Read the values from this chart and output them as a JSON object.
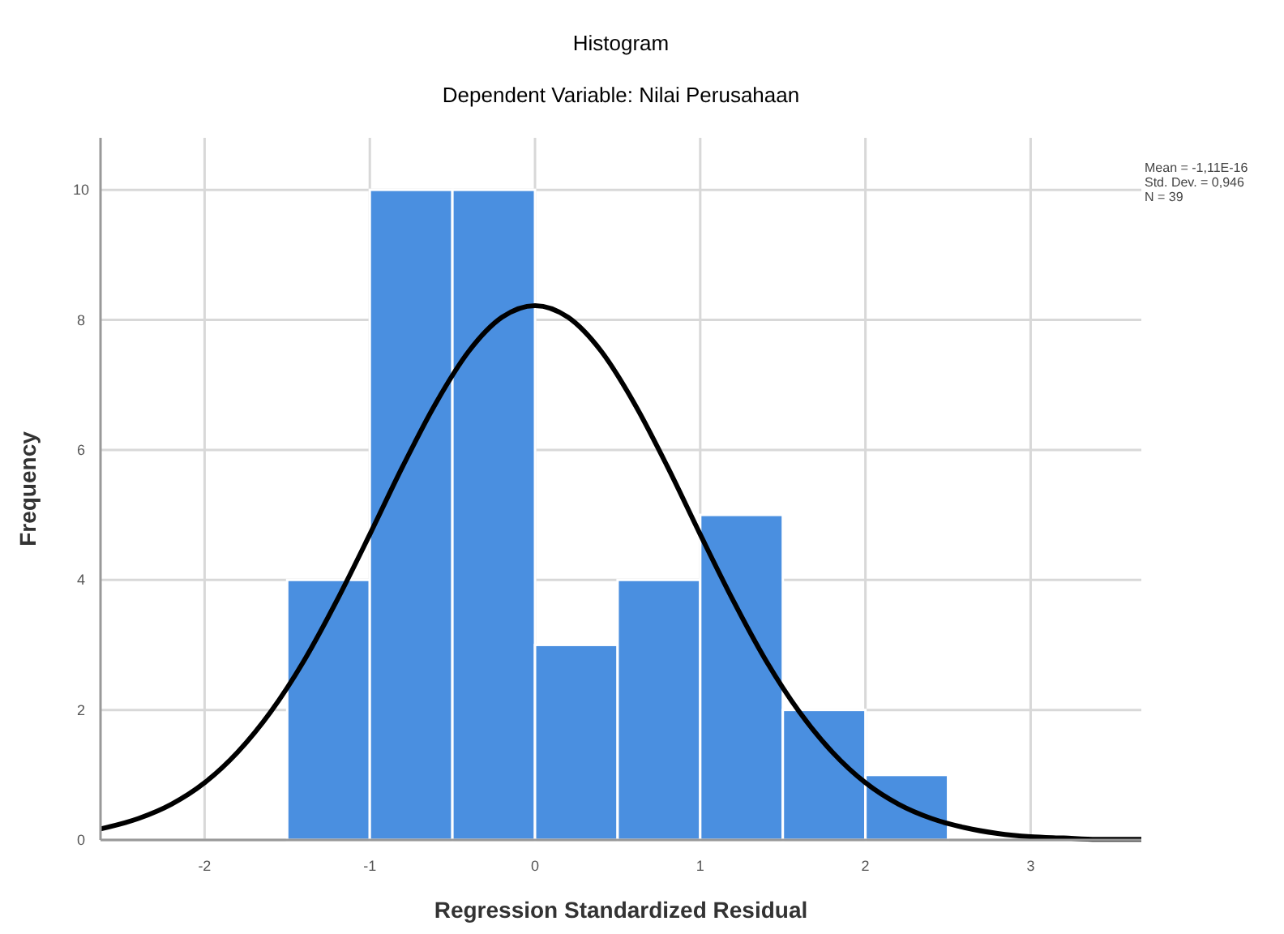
{
  "chart_data": {
    "type": "histogram",
    "title": "Histogram",
    "subtitle": "Dependent Variable: Nilai Perusahaan",
    "xlabel": "Regression Standardized Residual",
    "ylabel": "Frequency",
    "bins": [
      -1.5,
      -1,
      -0.5,
      0,
      0.5,
      1,
      1.5,
      2,
      2.5
    ],
    "values": [
      4,
      10,
      10,
      3,
      4,
      5,
      2,
      1
    ],
    "color": "#4a8fe0",
    "series": [
      {
        "type": "line",
        "color": "#000000",
        "x": [
          -2.63,
          -2.4,
          -2.2,
          -2,
          -1.8,
          -1.6,
          -1.4,
          -1.2,
          -1,
          -0.8,
          -0.6,
          -0.4,
          -0.2,
          0,
          0.2,
          0.4,
          0.6,
          0.8,
          1,
          1.2,
          1.4,
          1.6,
          1.8,
          2,
          2.2,
          2.4,
          2.6,
          2.8,
          3,
          3.2,
          3.4,
          3.67
        ],
        "values": [
          0.17,
          0.33,
          0.55,
          0.88,
          1.35,
          1.97,
          2.75,
          3.68,
          4.7,
          5.75,
          6.72,
          7.52,
          8.04,
          8.22,
          8.04,
          7.52,
          6.72,
          5.75,
          4.7,
          3.68,
          2.75,
          1.97,
          1.35,
          0.88,
          0.55,
          0.33,
          0.19,
          0.1,
          0.05,
          0.03,
          0.01,
          0.01
        ]
      }
    ],
    "xlim": [
      -2.63,
      3.67
    ],
    "xticks": [
      -2,
      -1,
      0,
      1,
      2,
      3
    ],
    "ylim": [
      0,
      10.8
    ],
    "yticks": [
      0,
      2,
      4,
      6,
      8,
      10
    ],
    "grid": true,
    "line_style": "solid",
    "annotations": [
      "Mean = -1,11E-16\nStd. Dev. = 0,946\nN = 39"
    ]
  }
}
